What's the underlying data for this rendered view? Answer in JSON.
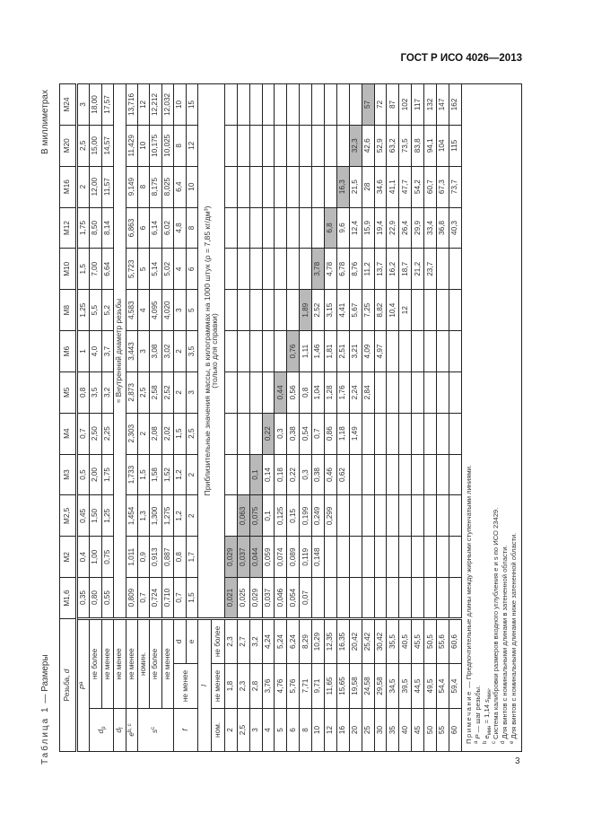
{
  "header": {
    "doc_code": "ГОСТ Р ИСО 4026—2013"
  },
  "page_number": "3",
  "table_title": {
    "label": "Таблица 1",
    "rest": " — Размеры",
    "units": "В миллиметрах"
  },
  "labels": {
    "thread": "Резьба, ",
    "thread_sym": "d",
    "pitch": "P",
    "pitch_note": "a",
    "dp": "d",
    "dp_sub": "p",
    "df": "d",
    "df_sub": "f",
    "e": "e",
    "e_note": "b, c",
    "s": "s",
    "s_note": "c",
    "f": "f",
    "l": "l",
    "max": "не более",
    "min": "не менее",
    "nom": "номин.",
    "nom_short": "ном.",
    "f_d": "d",
    "f_e": "e",
    "df_value": "≈ Внутренний диаметр резьбы",
    "mass_caption_1": "Приблизительные значения массы, в килограммах на 1000 штук (ρ = 7,85 кг/дм³)",
    "mass_caption_2": "(только для справки)"
  },
  "columns": [
    "M1,6",
    "M2",
    "M2,5",
    "M3",
    "M4",
    "M5",
    "M6",
    "M8",
    "M10",
    "M12",
    "M16",
    "M20",
    "M24"
  ],
  "dims": {
    "P": [
      "0,35",
      "0,4",
      "0,45",
      "0,5",
      "0,7",
      "0,8",
      "1",
      "1,25",
      "1,5",
      "1,75",
      "2",
      "2,5",
      "3"
    ],
    "dp_max": [
      "0,80",
      "1,00",
      "1,50",
      "2,00",
      "2,50",
      "3,5",
      "4,0",
      "5,5",
      "7,00",
      "8,50",
      "12,00",
      "15,00",
      "18,00"
    ],
    "dp_min": [
      "0,55",
      "0,75",
      "1,25",
      "1,75",
      "2,25",
      "3,2",
      "3,7",
      "5,2",
      "6,64",
      "8,14",
      "11,57",
      "14,57",
      "17,57"
    ],
    "e_min": [
      "0,809",
      "1,011",
      "1,454",
      "1,733",
      "2,303",
      "2,873",
      "3,443",
      "4,583",
      "5,723",
      "6,863",
      "9,149",
      "11,429",
      "13,716"
    ],
    "s_nom": [
      "0,7",
      "0,9",
      "1,3",
      "1,5",
      "2",
      "2,5",
      "3",
      "4",
      "5",
      "6",
      "8",
      "10",
      "12"
    ],
    "s_max": [
      "0,724",
      "0,913",
      "1,300",
      "1,58",
      "2,08",
      "2,58",
      "3,08",
      "4,095",
      "5,14",
      "6,14",
      "8,175",
      "10,175",
      "12,212"
    ],
    "s_min": [
      "0,710",
      "0,887",
      "1,275",
      "1,52",
      "2,02",
      "2,52",
      "3,02",
      "4,020",
      "5,02",
      "6,02",
      "8,025",
      "10,025",
      "12,032"
    ],
    "f_d": [
      "0,7",
      "0,8",
      "1,2",
      "1,2",
      "1,5",
      "2",
      "2",
      "3",
      "4",
      "4,8",
      "6,4",
      "8",
      "10"
    ],
    "f_e": [
      "1,5",
      "1,7",
      "2",
      "2",
      "2,5",
      "3",
      "3,5",
      "5",
      "6",
      "8",
      "10",
      "12",
      "15"
    ]
  },
  "mass_rows": [
    {
      "nom": "2",
      "min": "1,8",
      "max": "2,3",
      "mass": [
        "0,021",
        "0,029",
        "",
        "",
        "",
        "",
        "",
        "",
        "",
        "",
        "",
        "",
        ""
      ],
      "shaded": [
        0,
        1
      ]
    },
    {
      "nom": "2,5",
      "min": "2,3",
      "max": "2,7",
      "mass": [
        "0,025",
        "0,037",
        "0,063",
        "",
        "",
        "",
        "",
        "",
        "",
        "",
        "",
        "",
        ""
      ],
      "shaded": [
        1,
        2
      ]
    },
    {
      "nom": "3",
      "min": "2,8",
      "max": "3,2",
      "mass": [
        "0,029",
        "0,044",
        "0,075",
        "0,1",
        "",
        "",
        "",
        "",
        "",
        "",
        "",
        "",
        ""
      ],
      "shaded": [
        1,
        2,
        3
      ]
    },
    {
      "nom": "4",
      "min": "3,76",
      "max": "4,24",
      "mass": [
        "0,037",
        "0,059",
        "0,1",
        "0,14",
        "0,22",
        "",
        "",
        "",
        "",
        "",
        "",
        "",
        ""
      ],
      "shaded": [
        4
      ]
    },
    {
      "nom": "5",
      "min": "4,76",
      "max": "5,24",
      "mass": [
        "0,046",
        "0,074",
        "0,125",
        "0,18",
        "0,3",
        "0,44",
        "",
        "",
        "",
        "",
        "",
        "",
        ""
      ],
      "shaded": [
        5
      ]
    },
    {
      "nom": "6",
      "min": "5,76",
      "max": "6,24",
      "mass": [
        "0,054",
        "0,089",
        "0,15",
        "0,22",
        "0,38",
        "0,56",
        "0,76",
        "",
        "",
        "",
        "",
        "",
        ""
      ],
      "shaded": [
        6
      ]
    },
    {
      "nom": "8",
      "min": "7,71",
      "max": "8,29",
      "mass": [
        "0,07",
        "0,119",
        "0,199",
        "0,3",
        "0,54",
        "0,8",
        "1,11",
        "1,89",
        "",
        "",
        "",
        "",
        ""
      ],
      "shaded": [
        7
      ]
    },
    {
      "nom": "10",
      "min": "9,71",
      "max": "10,29",
      "mass": [
        "",
        "0,148",
        "0,249",
        "0,38",
        "0,7",
        "1,04",
        "1,46",
        "2,52",
        "3,78",
        "",
        "",
        "",
        ""
      ],
      "shaded": [
        8
      ]
    },
    {
      "nom": "12",
      "min": "11,65",
      "max": "12,35",
      "mass": [
        "",
        "",
        "0,299",
        "0,46",
        "0,86",
        "1,28",
        "1,81",
        "3,15",
        "4,78",
        "6,8",
        "",
        "",
        ""
      ],
      "shaded": [
        9
      ]
    },
    {
      "nom": "16",
      "min": "15,65",
      "max": "16,35",
      "mass": [
        "",
        "",
        "",
        "0,62",
        "1,18",
        "1,76",
        "2,51",
        "4,41",
        "6,78",
        "9,6",
        "16,3",
        "",
        ""
      ],
      "shaded": [
        10
      ]
    },
    {
      "nom": "20",
      "min": "19,58",
      "max": "20,42",
      "mass": [
        "",
        "",
        "",
        "",
        "1,49",
        "2,24",
        "3,21",
        "5,67",
        "8,76",
        "12,4",
        "21,5",
        "32,3",
        ""
      ],
      "shaded": [
        11
      ]
    },
    {
      "nom": "25",
      "min": "24,58",
      "max": "25,42",
      "mass": [
        "",
        "",
        "",
        "",
        "",
        "2,84",
        "4,09",
        "7,25",
        "11,2",
        "15,9",
        "28",
        "42,6",
        "57"
      ],
      "shaded": [
        12
      ]
    },
    {
      "nom": "30",
      "min": "29,58",
      "max": "30,42",
      "mass": [
        "",
        "",
        "",
        "",
        "",
        "",
        "4,97",
        "8,82",
        "13,7",
        "19,4",
        "34,6",
        "52,9",
        "72"
      ],
      "shaded": []
    },
    {
      "nom": "35",
      "min": "34,5",
      "max": "35,5",
      "mass": [
        "",
        "",
        "",
        "",
        "",
        "",
        "",
        "10,4",
        "16,2",
        "22,9",
        "41,1",
        "63,2",
        "87"
      ],
      "shaded": []
    },
    {
      "nom": "40",
      "min": "39,5",
      "max": "40,5",
      "mass": [
        "",
        "",
        "",
        "",
        "",
        "",
        "",
        "12",
        "18,7",
        "26,4",
        "47,7",
        "73,5",
        "102"
      ],
      "shaded": []
    },
    {
      "nom": "45",
      "min": "44,5",
      "max": "45,5",
      "mass": [
        "",
        "",
        "",
        "",
        "",
        "",
        "",
        "",
        "21,2",
        "29,9",
        "54,2",
        "83,8",
        "117"
      ],
      "shaded": []
    },
    {
      "nom": "50",
      "min": "49,5",
      "max": "50,5",
      "mass": [
        "",
        "",
        "",
        "",
        "",
        "",
        "",
        "",
        "23,7",
        "33,4",
        "60,7",
        "94,1",
        "132"
      ],
      "shaded": []
    },
    {
      "nom": "55",
      "min": "54,4",
      "max": "55,6",
      "mass": [
        "",
        "",
        "",
        "",
        "",
        "",
        "",
        "",
        "",
        "36,8",
        "67,3",
        "104",
        "147"
      ],
      "shaded": []
    },
    {
      "nom": "60",
      "min": "59,4",
      "max": "60,6",
      "mass": [
        "",
        "",
        "",
        "",
        "",
        "",
        "",
        "",
        "",
        "40,3",
        "73,7",
        "115",
        "162"
      ],
      "shaded": []
    }
  ],
  "notes": {
    "title": "Примечание",
    "title_text": " — Предпочтительные длины между жирными ступенчатыми линиями.",
    "a_mark": "a",
    "a_sym": "P",
    "a_text": " — шаг резьбы.",
    "b_mark": "b",
    "b_e": "e",
    "b_e_sub": "мин",
    "b_mid": " = 1,14 ",
    "b_s": "s",
    "b_s_sub": "мин",
    "b_end": ".",
    "c_mark": "c",
    "c_text": "Система калибровки размеров входного углубления e и s по ИСО 23429.",
    "d_mark": "d",
    "d_text": "Для винтов с номинальными длинами в затененной области.",
    "e_mark": "e",
    "e_text": "Для винтов с номинальными длинами ниже затененной области."
  },
  "colors": {
    "shade": "#b9b9b9",
    "rule": "#222222"
  }
}
